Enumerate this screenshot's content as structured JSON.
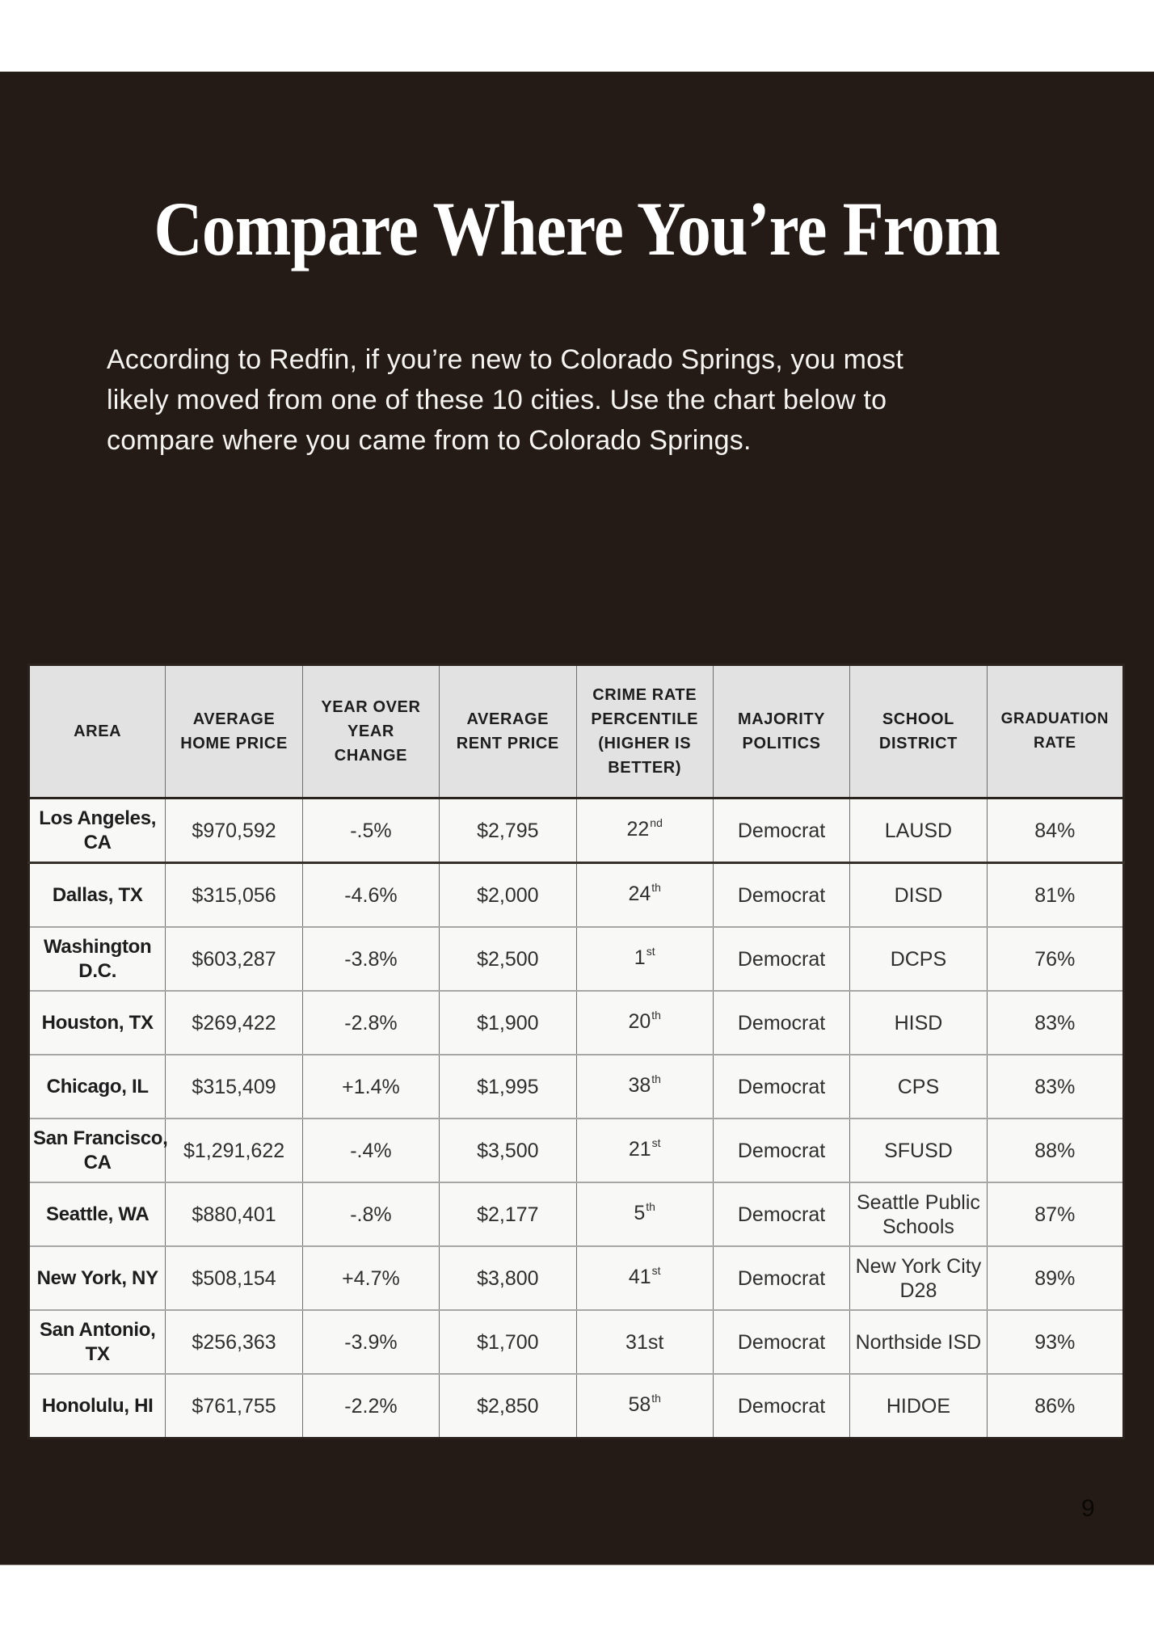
{
  "page": {
    "title": "Compare Where You’re From",
    "intro_lines": [
      "According to Redfin, if you’re new to Colorado Springs, you most",
      "likely moved from one of these 10 cities. Use the chart below to",
      "compare where you came from to Colorado Springs."
    ],
    "page_number": "9"
  },
  "colors": {
    "background_dark": "#241B16",
    "page_white": "#FFFFFF",
    "table_header_bg": "#E2E2E2",
    "table_row_bg": "#F8F8F7",
    "border_dark": "#2B241E",
    "border_light": "#A6A6A6",
    "text_light": "#F6F4F1",
    "text_dark": "#2F2F2F"
  },
  "table": {
    "headers": [
      {
        "key": "area",
        "lines": [
          "AREA"
        ]
      },
      {
        "key": "home-price",
        "lines": [
          "AVERAGE",
          "HOME PRICE"
        ]
      },
      {
        "key": "yoy-change",
        "lines": [
          "YEAR OVER",
          "YEAR",
          "CHANGE"
        ]
      },
      {
        "key": "rent-price",
        "lines": [
          "AVERAGE",
          "RENT PRICE"
        ]
      },
      {
        "key": "crime-rate",
        "lines": [
          "CRIME RATE",
          "PERCENTILE",
          "(HIGHER IS",
          "BETTER)"
        ]
      },
      {
        "key": "politics",
        "lines": [
          "MAJORITY",
          "POLITICS"
        ]
      },
      {
        "key": "school-district",
        "lines": [
          "SCHOOL",
          "DISTRICT"
        ]
      },
      {
        "key": "graduation-rate",
        "lines": [
          "GRADUATION",
          "RATE"
        ],
        "small": true
      }
    ],
    "rows": [
      {
        "area": [
          "Los Angeles,",
          "CA"
        ],
        "home_price": "$970,592",
        "yoy_change": "-.5%",
        "rent_price": "$2,795",
        "crime": "22",
        "crime_sup": "nd",
        "politics": "Democrat",
        "district": [
          "LAUSD"
        ],
        "grad_rate": "84%"
      },
      {
        "area": [
          "Dallas, TX"
        ],
        "home_price": "$315,056",
        "yoy_change": "-4.6%",
        "rent_price": "$2,000",
        "crime": "24",
        "crime_sup": "th",
        "politics": "Democrat",
        "district": [
          "DISD"
        ],
        "grad_rate": "81%"
      },
      {
        "area": [
          "Washington",
          "D.C."
        ],
        "home_price": "$603,287",
        "yoy_change": "-3.8%",
        "rent_price": "$2,500",
        "crime": "1",
        "crime_sup": "st",
        "politics": "Democrat",
        "district": [
          "DCPS"
        ],
        "grad_rate": "76%"
      },
      {
        "area": [
          "Houston, TX"
        ],
        "home_price": "$269,422",
        "yoy_change": "-2.8%",
        "rent_price": "$1,900",
        "crime": "20",
        "crime_sup": "th",
        "politics": "Democrat",
        "district": [
          "HISD"
        ],
        "grad_rate": "83%"
      },
      {
        "area": [
          "Chicago, IL"
        ],
        "home_price": "$315,409",
        "yoy_change": "+1.4%",
        "rent_price": "$1,995",
        "crime": "38",
        "crime_sup": "th",
        "politics": "Democrat",
        "district": [
          "CPS"
        ],
        "grad_rate": "83%"
      },
      {
        "area": [
          "San Francisco,",
          "CA"
        ],
        "home_price": "$1,291,622",
        "yoy_change": "-.4%",
        "rent_price": "$3,500",
        "crime": "21",
        "crime_sup": "st",
        "politics": "Democrat",
        "district": [
          "SFUSD"
        ],
        "grad_rate": "88%"
      },
      {
        "area": [
          "Seattle, WA"
        ],
        "home_price": "$880,401",
        "yoy_change": "-.8%",
        "rent_price": "$2,177",
        "crime": "5",
        "crime_sup": "th",
        "politics": "Democrat",
        "district": [
          "Seattle Public",
          "Schools"
        ],
        "grad_rate": "87%"
      },
      {
        "area": [
          "New York, NY"
        ],
        "home_price": "$508,154",
        "yoy_change": "+4.7%",
        "rent_price": "$3,800",
        "crime": "41",
        "crime_sup": "st",
        "politics": "Democrat",
        "district": [
          "New York City",
          "D28"
        ],
        "grad_rate": "89%"
      },
      {
        "area": [
          "San Antonio,",
          "TX"
        ],
        "home_price": "$256,363",
        "yoy_change": "-3.9%",
        "rent_price": "$1,700",
        "crime": "31st",
        "crime_sup": "",
        "politics": "Democrat",
        "district": [
          "Northside ISD"
        ],
        "grad_rate": "93%"
      },
      {
        "area": [
          "Honolulu, HI"
        ],
        "home_price": "$761,755",
        "yoy_change": "-2.2%",
        "rent_price": "$2,850",
        "crime": "58",
        "crime_sup": "th",
        "politics": "Democrat",
        "district": [
          "HIDOE"
        ],
        "grad_rate": "86%"
      }
    ]
  }
}
